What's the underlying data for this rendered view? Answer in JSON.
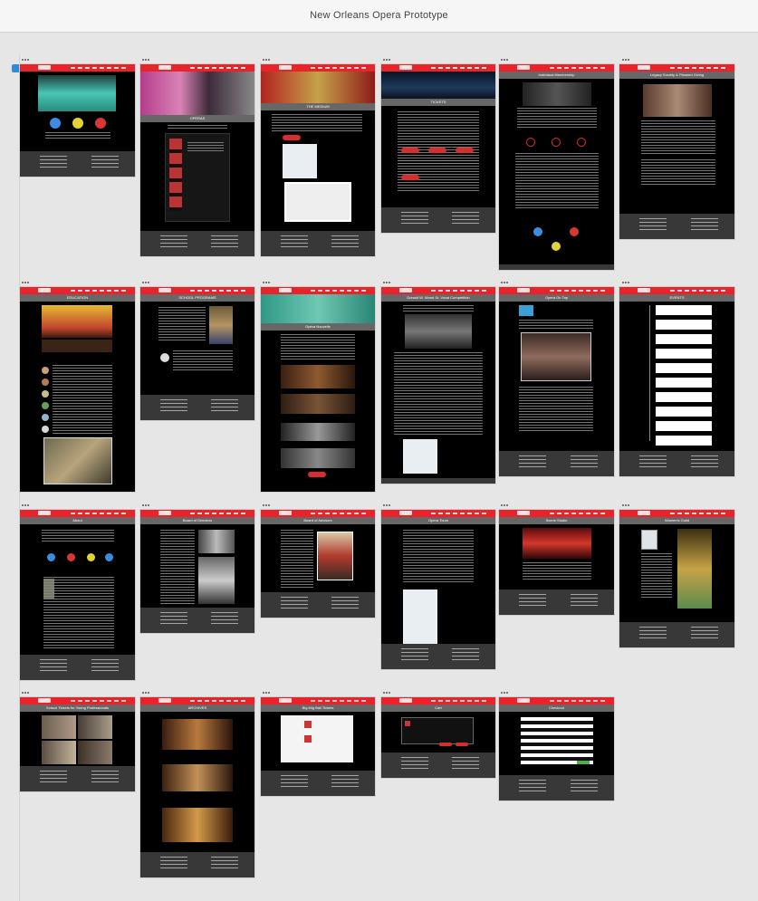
{
  "app": {
    "title": "New Orleans Opera Prototype"
  },
  "artboards": [
    {
      "id": "home",
      "label": ""
    },
    {
      "id": "opera",
      "label": "OPERAS"
    },
    {
      "id": "medium",
      "label": "THE MEDIUM"
    },
    {
      "id": "tickets",
      "label": "TICKETS"
    },
    {
      "id": "membership",
      "label": "Individual Membership"
    },
    {
      "id": "legacy",
      "label": "Legacy Society & Planned Giving"
    },
    {
      "id": "education",
      "label": "EDUCATION"
    },
    {
      "id": "school",
      "label": "SCHOOL PROGRAMS"
    },
    {
      "id": "nouveaux",
      "label": "Opéra Nouvelle"
    },
    {
      "id": "competition",
      "label": "Donald W. Wood Sr. Vocal Competition"
    },
    {
      "id": "operatap",
      "label": "Opera On Tap"
    },
    {
      "id": "events",
      "label": "EVENTS"
    },
    {
      "id": "about",
      "label": "About"
    },
    {
      "id": "directors",
      "label": "Board of Directors"
    },
    {
      "id": "advisors",
      "label": "Board of Advisors"
    },
    {
      "id": "tours",
      "label": "Opera Tours"
    },
    {
      "id": "scenestudio",
      "label": "Scene Studio"
    },
    {
      "id": "womensguild",
      "label": "Women's Guild"
    },
    {
      "id": "schoolmatinee",
      "label": "School Tickets for Young Professionals"
    },
    {
      "id": "archives",
      "label": "ARCHIVES"
    },
    {
      "id": "bigmyball",
      "label": "Big Mig Ball Tickets"
    },
    {
      "id": "cart",
      "label": "Cart"
    },
    {
      "id": "checkout",
      "label": "Checkout"
    }
  ],
  "theme": {
    "nav": "#e8232a",
    "title_bar": "#676767",
    "footer": "#383838",
    "canvas": "#e6e6e6",
    "board": "#000000",
    "accent": "#2d8be0"
  },
  "icons": {
    "more": "ellipsis-icon",
    "selection": "selection-marker-icon"
  }
}
